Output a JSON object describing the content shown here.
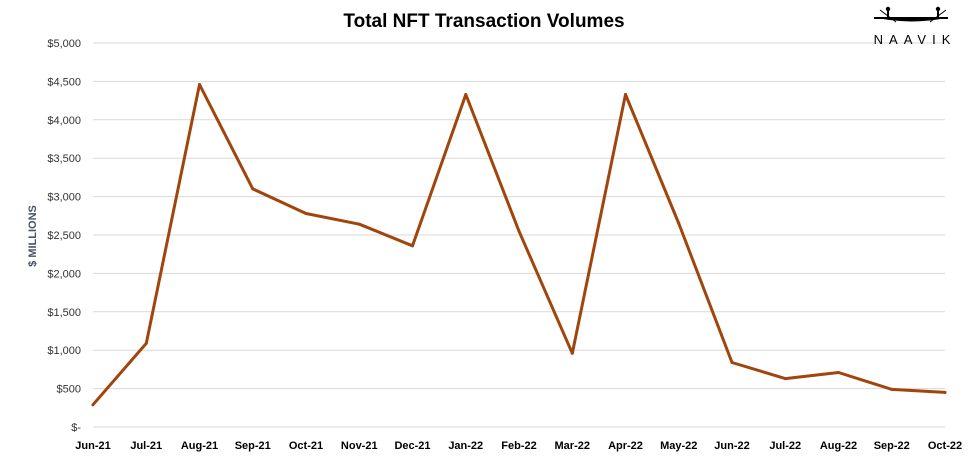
{
  "chart_data": {
    "type": "line",
    "title": "Total NFT Transaction Volumes",
    "ylabel": "$ MILLIONS",
    "xlabel": "",
    "categories": [
      "Jun-21",
      "Jul-21",
      "Aug-21",
      "Sep-21",
      "Oct-21",
      "Nov-21",
      "Dec-21",
      "Jan-22",
      "Feb-22",
      "Mar-22",
      "Apr-22",
      "May-22",
      "Jun-22",
      "Jul-22",
      "Aug-22",
      "Sep-22",
      "Oct-22"
    ],
    "series": [
      {
        "values": [
          290,
          1090,
          4460,
          3100,
          2780,
          2640,
          2360,
          4330,
          2550,
          960,
          4330,
          2650,
          840,
          630,
          710,
          490,
          450
        ]
      }
    ],
    "ylim": [
      0,
      5000
    ],
    "yticks": [
      0,
      500,
      1000,
      1500,
      2000,
      2500,
      3000,
      3500,
      4000,
      4500,
      5000
    ],
    "ytick_labels": [
      "$-",
      "$500",
      "$1,000",
      "$1,500",
      "$2,000",
      "$2,500",
      "$3,000",
      "$3,500",
      "$4,000",
      "$4,500",
      "$5,000"
    ],
    "grid": true,
    "legend": "none",
    "colors": {
      "line": "#a0450c",
      "grid": "#d9d9d9",
      "ylabel": "#44546a"
    }
  },
  "logo": {
    "text": "NAAVIK"
  }
}
